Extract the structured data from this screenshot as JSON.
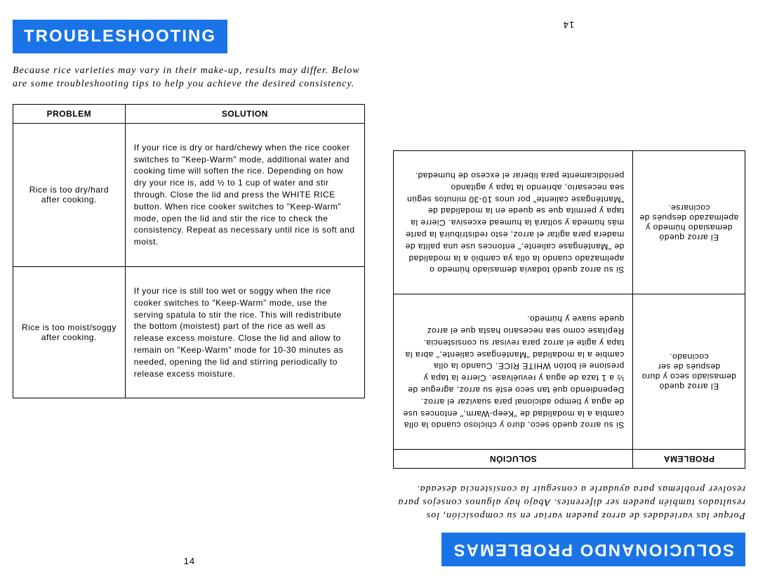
{
  "left": {
    "title": "TROUBLESHOOTING",
    "intro": "Because rice varieties may vary in their make-up, results may differ. Below are some troubleshooting tips to help you achieve the desired consistency.",
    "table": {
      "headers": {
        "problem": "PROBLEM",
        "solution": "SOLUTION"
      },
      "rows": [
        {
          "problem": "Rice is too dry/hard after cooking.",
          "solution": "If your rice is dry or hard/chewy when the rice cooker switches to \"Keep-Warm\" mode, additional water and cooking time will soften the rice. Depending on how dry your rice is, add ½ to 1 cup of water and stir through. Close the lid and press the WHITE RICE button. When rice cooker switches to \"Keep-Warm\" mode, open the lid and stir the rice to check the consistency. Repeat as necessary until rice is soft and moist."
        },
        {
          "problem": "Rice is too moist/soggy after cooking.",
          "solution": "If your rice is still too wet or soggy when the rice cooker switches to \"Keep-Warm\" mode, use the serving spatula to stir the rice. This will redistribute the bottom (moistest) part of the rice as well as release excess moisture. Close the lid and allow to remain on \"Keep-Warm\" mode for 10-30 minutes as needed, opening the lid and stirring periodically to release excess moisture."
        }
      ]
    },
    "page_num": "14"
  },
  "right": {
    "title": "SOLUCIONANDO PROBLEMAS",
    "intro": "Porque las variedades de arroz pueden variar en su composición, los resultados también pueden ser diferentes. Abajo hay algunos consejos para resolver problemas para ayudarle a conseguir la consistencia deseada.",
    "table": {
      "headers": {
        "problem": "PROBLEMA",
        "solution": "SOLUCIÓN"
      },
      "rows": [
        {
          "problem": "El arroz quedó demasiado seco y duro después de ser cocinado.",
          "solution": "Si su arroz quedó seco, duro y chicloso cuando la olla cambia a la modalidad de \"Keep-Warm,\" entonces use de agua y tiempo adicional para suavizar el arroz. Dependiendo qué tan seco esté su arroz, agregue de ½ a 1 taza de agua y revuélvase. Cierre la tapa y presione el botón WHITE RICE. Cuando la olla cambie a la modalidad \"Manténgase caliente,\" abra la tapa y agite el arroz para revisar su consistencia. Repítase como sea necesario hasta que el arroz quede suave y húmedo."
        },
        {
          "problem": "El arroz quedó demasiado húmedo y apelmazado después de cocinarse.",
          "solution": "Si su arroz quedó todavía demasiado húmedo o apelmazado cuando la olla ya cambió a la modalidad de \"Manténgase caliente,\" entonces use una palita de madera para agitar el arroz, esto redistribuirá la parte más húmeda y soltará la humead excesiva. Cierre la tapa y permita que se quede en la modalidad de \"Manténgase caliente\" por unos 10-30 minutos según sea necesario, abriendo la tapa y agitando periódicamente para liberar el exceso de humedad."
        }
      ]
    },
    "page_num": "14"
  }
}
